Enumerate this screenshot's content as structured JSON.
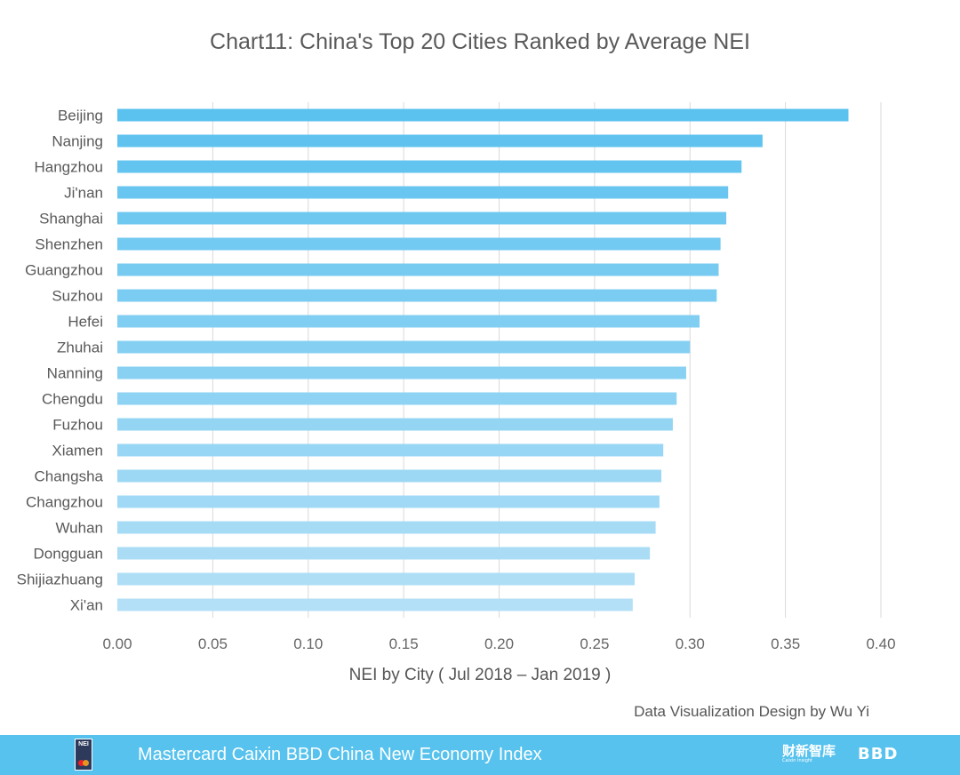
{
  "chart_data": {
    "type": "bar",
    "orientation": "horizontal",
    "title": "Chart11:  China's Top 20 Cities Ranked by Average NEI",
    "xlabel": "NEI by City ( Jul 2018 – Jan 2019 )",
    "ylabel": "",
    "categories": [
      "Beijing",
      "Nanjing",
      "Hangzhou",
      "Ji'nan",
      "Shanghai",
      "Shenzhen",
      "Guangzhou",
      "Suzhou",
      "Hefei",
      "Zhuhai",
      "Nanning",
      "Chengdu",
      "Fuzhou",
      "Xiamen",
      "Changsha",
      "Changzhou",
      "Wuhan",
      "Dongguan",
      "Shijiazhuang",
      "Xi'an"
    ],
    "values": [
      0.383,
      0.338,
      0.327,
      0.32,
      0.319,
      0.316,
      0.315,
      0.314,
      0.305,
      0.3,
      0.298,
      0.293,
      0.291,
      0.286,
      0.285,
      0.284,
      0.282,
      0.279,
      0.271,
      0.27
    ],
    "xlim": [
      0,
      0.4
    ],
    "xticks": [
      "0.00",
      "0.05",
      "0.10",
      "0.15",
      "0.20",
      "0.25",
      "0.30",
      "0.35",
      "0.40"
    ],
    "grid": "vertical",
    "legend": "none",
    "colors": {
      "top": "#5bc1ef",
      "bottom": "#b3e0f6"
    }
  },
  "credit": "Data Visualization Design by Wu Yi",
  "footer": {
    "title": "Mastercard Caixin BBD China New Economy Index",
    "nei_logo_text": "NEI",
    "caixin_logo_text": "财新智库",
    "caixin_logo_sub": "Caixin Insight",
    "bbd_logo_text": "BBD",
    "background": "#56c2ed"
  }
}
